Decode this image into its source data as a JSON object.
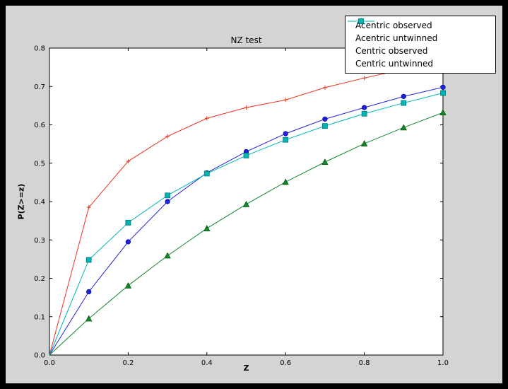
{
  "chart_data": {
    "type": "line",
    "title": "NZ test",
    "xlabel": "Z",
    "ylabel": "P(Z>=z)",
    "xlim": [
      0.0,
      1.0
    ],
    "ylim": [
      0.0,
      0.8
    ],
    "xticks": [
      0.0,
      0.2,
      0.4,
      0.6,
      0.8,
      1.0
    ],
    "yticks": [
      0.0,
      0.1,
      0.2,
      0.3,
      0.4,
      0.5,
      0.6,
      0.7,
      0.8
    ],
    "grid": false,
    "legend_position": "upper right",
    "figure_bg": "#d4d4d4",
    "plot_bg": "#ffffff",
    "x": [
      0.0,
      0.1,
      0.2,
      0.3,
      0.4,
      0.5,
      0.6,
      0.7,
      0.8,
      0.9,
      1.0
    ],
    "series": [
      {
        "name": "Acentric observed",
        "color": "#2222dd",
        "edge": "#0000a0",
        "marker": "circle",
        "values": [
          0.0,
          0.165,
          0.295,
          0.4,
          0.475,
          0.53,
          0.577,
          0.615,
          0.645,
          0.674,
          0.698
        ]
      },
      {
        "name": "Acentric untwinned",
        "color": "#118833",
        "edge": "#005500",
        "marker": "triangle",
        "values": [
          0.0,
          0.095,
          0.181,
          0.259,
          0.33,
          0.393,
          0.451,
          0.503,
          0.551,
          0.593,
          0.632
        ]
      },
      {
        "name": "Centric observed",
        "color": "#ee3322",
        "edge": "#c01000",
        "marker": "plus",
        "values": [
          0.0,
          0.385,
          0.505,
          0.57,
          0.617,
          0.645,
          0.665,
          0.697,
          0.722,
          0.745,
          0.757
        ]
      },
      {
        "name": "Centric untwinned",
        "color": "#00b5b5",
        "edge": "#007777",
        "marker": "square",
        "values": [
          0.0,
          0.248,
          0.345,
          0.416,
          0.473,
          0.52,
          0.561,
          0.597,
          0.629,
          0.657,
          0.683
        ]
      }
    ]
  }
}
